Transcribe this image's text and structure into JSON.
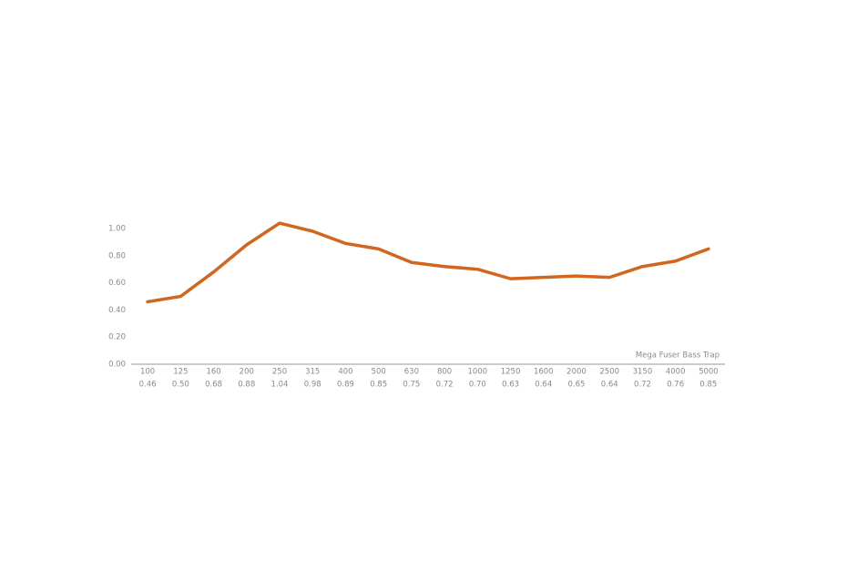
{
  "chart_data": {
    "type": "line",
    "categories": [
      "100",
      "125",
      "160",
      "200",
      "250",
      "315",
      "400",
      "500",
      "630",
      "800",
      "1000",
      "1250",
      "1600",
      "2000",
      "2500",
      "3150",
      "4000",
      "5000"
    ],
    "series": [
      {
        "name": "Mega Fuser Bass Trap",
        "color": "#d2661f",
        "values": [
          0.46,
          0.5,
          0.68,
          0.88,
          1.04,
          0.98,
          0.89,
          0.85,
          0.75,
          0.72,
          0.7,
          0.63,
          0.64,
          0.65,
          0.64,
          0.72,
          0.76,
          0.85
        ],
        "value_labels": [
          "0.46",
          "0.50",
          "0.68",
          "0.88",
          "1.04",
          "0.98",
          "0.89",
          "0.85",
          "0.75",
          "0.72",
          "0.70",
          "0.63",
          "0.64",
          "0.65",
          "0.64",
          "0.72",
          "0.76",
          "0.85"
        ]
      }
    ],
    "ylim": [
      0,
      1
    ],
    "yticks": [
      {
        "value": 0,
        "label": "0.00"
      },
      {
        "value": 0.2,
        "label": "0.20"
      },
      {
        "value": 0.4,
        "label": "0.40"
      },
      {
        "value": 0.6,
        "label": "0.60"
      },
      {
        "value": 0.8,
        "label": "0.80"
      },
      {
        "value": 1,
        "label": "1.00"
      }
    ],
    "grid": false
  }
}
